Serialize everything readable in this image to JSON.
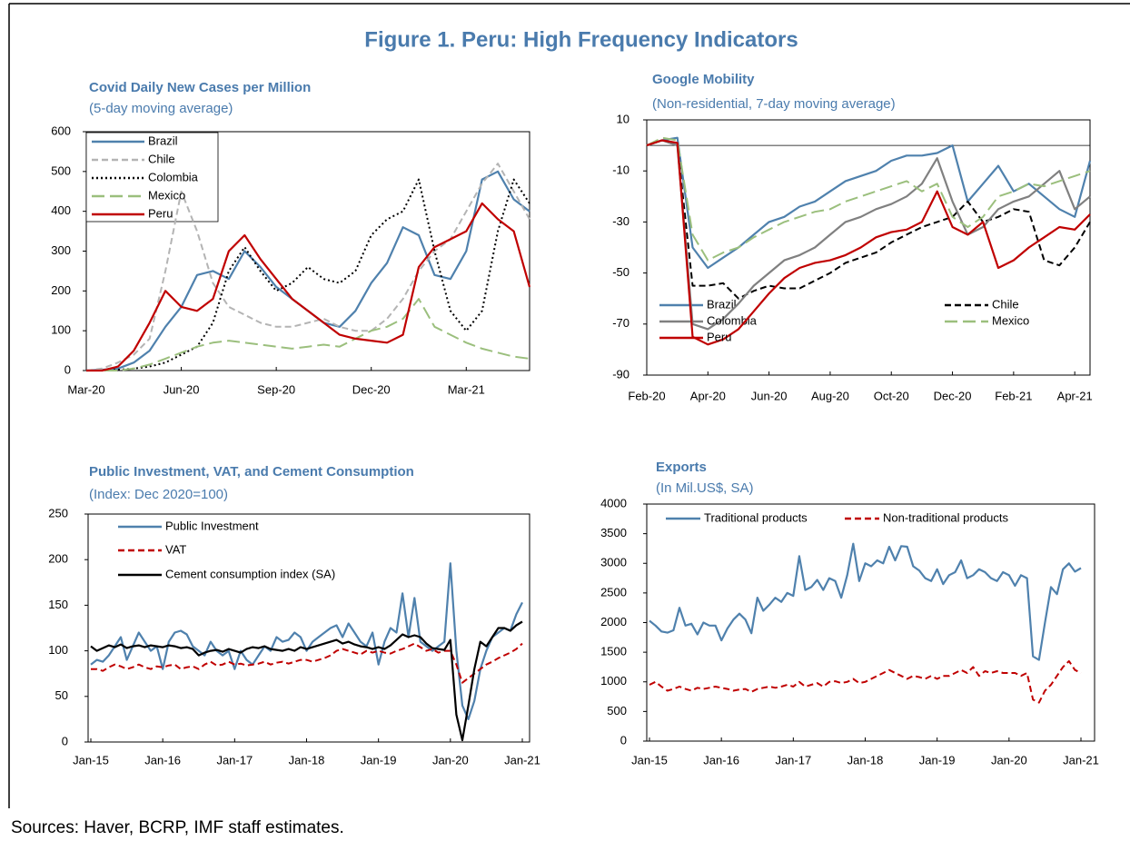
{
  "title": "Figure 1. Peru: High Frequency Indicators",
  "source": "Sources: Haver, BCRP, IMF staff estimates.",
  "chart_data": [
    {
      "type": "line",
      "title": "Covid Daily New Cases per Million",
      "subtitle": "(5-day moving average)",
      "categories": [
        "Mar-20",
        null,
        null,
        null,
        null,
        null,
        "Jun-20",
        null,
        null,
        null,
        null,
        null,
        "Sep-20",
        null,
        null,
        null,
        null,
        null,
        "Dec-20",
        null,
        null,
        null,
        null,
        null,
        "Mar-21",
        null,
        null,
        null,
        null
      ],
      "ylim": [
        0,
        600
      ],
      "yticks": [
        0,
        100,
        200,
        300,
        400,
        500,
        600
      ],
      "legend": "upper left",
      "series": [
        {
          "name": "Brazil",
          "color": "#4f81ad",
          "style": "solid",
          "values": [
            0,
            2,
            5,
            20,
            50,
            110,
            160,
            240,
            250,
            230,
            300,
            260,
            210,
            180,
            150,
            120,
            110,
            150,
            220,
            270,
            360,
            340,
            240,
            230,
            300,
            480,
            500,
            430,
            400
          ]
        },
        {
          "name": "Chile",
          "color": "#b4b4b4",
          "style": "dashed",
          "values": [
            0,
            5,
            20,
            40,
            80,
            250,
            450,
            350,
            220,
            160,
            140,
            120,
            110,
            110,
            120,
            130,
            110,
            100,
            100,
            130,
            180,
            250,
            300,
            330,
            400,
            470,
            520,
            450,
            380
          ]
        },
        {
          "name": "Colombia",
          "color": "#000000",
          "style": "dotted",
          "values": [
            0,
            0,
            2,
            5,
            10,
            20,
            40,
            60,
            120,
            250,
            310,
            250,
            200,
            220,
            260,
            230,
            220,
            250,
            340,
            380,
            400,
            480,
            300,
            150,
            100,
            150,
            350,
            480,
            420
          ]
        },
        {
          "name": "Mexico",
          "color": "#9bbf7d",
          "style": "longdash",
          "values": [
            0,
            0,
            0,
            5,
            15,
            30,
            45,
            60,
            70,
            75,
            70,
            65,
            60,
            55,
            60,
            65,
            60,
            80,
            100,
            110,
            130,
            180,
            110,
            90,
            70,
            55,
            45,
            35,
            30
          ]
        },
        {
          "name": "Peru",
          "color": "#c00000",
          "style": "solid",
          "values": [
            0,
            0,
            10,
            50,
            120,
            200,
            160,
            150,
            180,
            300,
            340,
            280,
            230,
            180,
            150,
            120,
            90,
            80,
            75,
            70,
            90,
            260,
            310,
            330,
            350,
            420,
            380,
            350,
            210
          ]
        }
      ]
    },
    {
      "type": "line",
      "title": "Google Mobility",
      "subtitle": "(Non-residential, 7-day moving average)",
      "categories": [
        "Feb-20",
        null,
        null,
        null,
        "Apr-20",
        null,
        null,
        null,
        "Jun-20",
        null,
        null,
        null,
        "Aug-20",
        null,
        null,
        null,
        "Oct-20",
        null,
        null,
        null,
        "Dec-20",
        null,
        null,
        null,
        "Feb-21",
        null,
        null,
        null,
        "Apr-21",
        null
      ],
      "ylim": [
        -90,
        10
      ],
      "yticks": [
        -90,
        -70,
        -50,
        -30,
        -10,
        10
      ],
      "hline": 0,
      "legend": "lower center",
      "series": [
        {
          "name": "Brazil",
          "color": "#4f81ad",
          "style": "solid",
          "values": [
            0,
            2,
            3,
            -40,
            -48,
            -44,
            -40,
            -35,
            -30,
            -28,
            -24,
            -22,
            -18,
            -14,
            -12,
            -10,
            -6,
            -4,
            -4,
            -3,
            0,
            -22,
            -15,
            -8,
            -18,
            -15,
            -20,
            -25,
            -28,
            -6
          ]
        },
        {
          "name": "Chile",
          "color": "#000000",
          "style": "dashed",
          "values": [
            0,
            2,
            0,
            -55,
            -55,
            -54,
            -60,
            -57,
            -55,
            -56,
            -56,
            -53,
            -50,
            -46,
            -44,
            -42,
            -38,
            -35,
            -32,
            -30,
            -28,
            -22,
            -30,
            -28,
            -25,
            -26,
            -45,
            -47,
            -40,
            -30
          ]
        },
        {
          "name": "Colombia",
          "color": "#808080",
          "style": "solid",
          "values": [
            0,
            2,
            0,
            -70,
            -72,
            -68,
            -62,
            -55,
            -50,
            -45,
            -43,
            -40,
            -35,
            -30,
            -28,
            -25,
            -23,
            -20,
            -15,
            -5,
            -22,
            -35,
            -32,
            -25,
            -22,
            -20,
            -15,
            -10,
            -25,
            -20
          ]
        },
        {
          "name": "Mexico",
          "color": "#9bbf7d",
          "style": "longdash",
          "values": [
            0,
            3,
            2,
            -35,
            -45,
            -42,
            -40,
            -36,
            -33,
            -30,
            -28,
            -26,
            -25,
            -22,
            -20,
            -18,
            -16,
            -14,
            -18,
            -15,
            -28,
            -32,
            -28,
            -20,
            -18,
            -15,
            -16,
            -14,
            -12,
            -10
          ]
        },
        {
          "name": "Peru",
          "color": "#c00000",
          "style": "solid",
          "values": [
            0,
            2,
            1,
            -75,
            -78,
            -76,
            -72,
            -65,
            -58,
            -52,
            -48,
            -46,
            -45,
            -43,
            -40,
            -36,
            -34,
            -33,
            -30,
            -18,
            -32,
            -35,
            -30,
            -48,
            -45,
            -40,
            -36,
            -32,
            -33,
            -27
          ]
        }
      ]
    },
    {
      "type": "line",
      "title": "Public Investment, VAT, and Cement Consumption",
      "subtitle": "(Index: Dec 2020=100)",
      "categories": [
        "Jan-15",
        null,
        null,
        null,
        null,
        null,
        null,
        null,
        null,
        null,
        null,
        null,
        "Jan-16",
        null,
        null,
        null,
        null,
        null,
        null,
        null,
        null,
        null,
        null,
        null,
        "Jan-17",
        null,
        null,
        null,
        null,
        null,
        null,
        null,
        null,
        null,
        null,
        null,
        "Jan-18",
        null,
        null,
        null,
        null,
        null,
        null,
        null,
        null,
        null,
        null,
        null,
        "Jan-19",
        null,
        null,
        null,
        null,
        null,
        null,
        null,
        null,
        null,
        null,
        null,
        "Jan-20",
        null,
        null,
        null,
        null,
        null,
        null,
        null,
        null,
        null,
        null,
        null,
        "Jan-21"
      ],
      "ylim": [
        0,
        250
      ],
      "yticks": [
        0,
        50,
        100,
        150,
        200,
        250
      ],
      "legend": "upper left",
      "series": [
        {
          "name": "Public Investment",
          "color": "#4f81ad",
          "style": "solid",
          "values": [
            85,
            90,
            88,
            95,
            105,
            115,
            90,
            105,
            120,
            110,
            100,
            105,
            80,
            110,
            120,
            122,
            118,
            105,
            100,
            95,
            110,
            100,
            95,
            100,
            80,
            100,
            90,
            85,
            95,
            105,
            100,
            115,
            110,
            112,
            120,
            115,
            100,
            110,
            115,
            120,
            125,
            128,
            115,
            130,
            120,
            110,
            105,
            120,
            85,
            110,
            125,
            120,
            163,
            115,
            158,
            110,
            105,
            100,
            105,
            110,
            196,
            100,
            40,
            25,
            45,
            80,
            100,
            115,
            120,
            125,
            122,
            140,
            153
          ]
        },
        {
          "name": "VAT",
          "color": "#c00000",
          "style": "dashed",
          "values": [
            80,
            80,
            78,
            82,
            85,
            83,
            80,
            82,
            85,
            82,
            80,
            83,
            82,
            84,
            85,
            80,
            82,
            83,
            80,
            85,
            88,
            84,
            85,
            88,
            85,
            86,
            84,
            85,
            86,
            88,
            85,
            87,
            88,
            86,
            88,
            90,
            90,
            88,
            90,
            92,
            95,
            100,
            102,
            100,
            98,
            96,
            100,
            98,
            100,
            98,
            97,
            100,
            102,
            105,
            108,
            104,
            100,
            102,
            98,
            100,
            100,
            85,
            65,
            70,
            75,
            80,
            85,
            88,
            92,
            95,
            98,
            102,
            108
          ]
        },
        {
          "name": "Cement consumption index (SA)",
          "color": "#000000",
          "style": "solid",
          "values": [
            105,
            100,
            103,
            106,
            104,
            107,
            103,
            105,
            106,
            104,
            106,
            105,
            104,
            106,
            105,
            103,
            104,
            102,
            95,
            98,
            100,
            101,
            99,
            102,
            100,
            98,
            102,
            104,
            103,
            105,
            102,
            101,
            100,
            102,
            100,
            104,
            102,
            104,
            106,
            108,
            110,
            112,
            108,
            110,
            107,
            105,
            104,
            102,
            104,
            102,
            106,
            112,
            118,
            115,
            117,
            115,
            108,
            103,
            102,
            101,
            112,
            30,
            2,
            40,
            80,
            110,
            105,
            115,
            125,
            125,
            122,
            128,
            132
          ]
        }
      ]
    },
    {
      "type": "line",
      "title": "Exports",
      "subtitle": "(In Mil.US$, SA)",
      "categories": [
        "Jan-15",
        null,
        null,
        null,
        null,
        null,
        null,
        null,
        null,
        null,
        null,
        null,
        "Jan-16",
        null,
        null,
        null,
        null,
        null,
        null,
        null,
        null,
        null,
        null,
        null,
        "Jan-17",
        null,
        null,
        null,
        null,
        null,
        null,
        null,
        null,
        null,
        null,
        null,
        "Jan-18",
        null,
        null,
        null,
        null,
        null,
        null,
        null,
        null,
        null,
        null,
        null,
        "Jan-19",
        null,
        null,
        null,
        null,
        null,
        null,
        null,
        null,
        null,
        null,
        null,
        "Jan-20",
        null,
        null,
        null,
        null,
        null,
        null,
        null,
        null,
        null,
        null,
        null,
        "Jan-21"
      ],
      "ylim": [
        0,
        4000
      ],
      "yticks": [
        0,
        500,
        1000,
        1500,
        2000,
        2500,
        3000,
        3500,
        4000
      ],
      "legend": "upper center",
      "series": [
        {
          "name": "Traditional products",
          "color": "#4f81ad",
          "style": "solid",
          "values": [
            2030,
            1950,
            1850,
            1830,
            1870,
            2250,
            1950,
            1980,
            1800,
            2000,
            1950,
            1950,
            1700,
            1900,
            2050,
            2150,
            2050,
            1820,
            2420,
            2200,
            2300,
            2420,
            2350,
            2500,
            2450,
            3120,
            2550,
            2600,
            2720,
            2550,
            2750,
            2700,
            2420,
            2800,
            3330,
            2700,
            3000,
            2950,
            3050,
            3000,
            3280,
            3050,
            3290,
            3280,
            2950,
            2880,
            2750,
            2700,
            2900,
            2650,
            2800,
            2850,
            3050,
            2750,
            2800,
            2900,
            2850,
            2750,
            2700,
            2850,
            2800,
            2620,
            2800,
            2750,
            1430,
            1370,
            2000,
            2600,
            2480,
            2900,
            3000,
            2860,
            2920
          ]
        },
        {
          "name": "Non-traditional products",
          "color": "#c00000",
          "style": "dashed",
          "values": [
            950,
            1000,
            920,
            850,
            880,
            920,
            880,
            850,
            900,
            880,
            900,
            920,
            900,
            880,
            850,
            870,
            880,
            830,
            880,
            900,
            920,
            900,
            920,
            950,
            920,
            1000,
            920,
            950,
            980,
            920,
            1000,
            1010,
            980,
            1000,
            1050,
            980,
            1000,
            1050,
            1100,
            1150,
            1200,
            1150,
            1100,
            1050,
            1100,
            1080,
            1050,
            1100,
            1050,
            1100,
            1100,
            1150,
            1200,
            1150,
            1250,
            1100,
            1180,
            1150,
            1180,
            1150,
            1150,
            1150,
            1100,
            1150,
            700,
            650,
            850,
            950,
            1100,
            1250,
            1350,
            1200,
            1150
          ]
        }
      ]
    }
  ]
}
